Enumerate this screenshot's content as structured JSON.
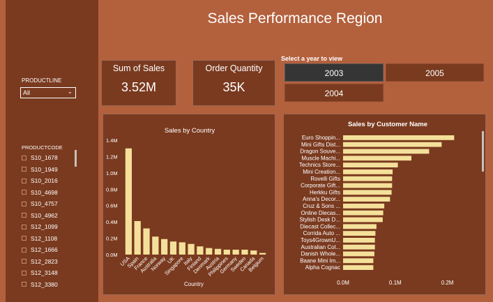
{
  "title": "Sales Performance Region",
  "filters": {
    "productline": {
      "label": "PRODUCTLINE",
      "value": "All"
    },
    "productcode": {
      "label": "PRODUCTCODE",
      "items": [
        "S10_1678",
        "S10_1949",
        "S10_2016",
        "S10_4698",
        "S10_4757",
        "S10_4962",
        "S12_1099",
        "S12_1108",
        "S12_1666",
        "S12_2823",
        "S12_3148",
        "S12_3380"
      ]
    }
  },
  "kpis": {
    "sales": {
      "label": "Sum of Sales",
      "value": "3.52M"
    },
    "quantity": {
      "label": "Order Quantity",
      "value": "35K"
    }
  },
  "year_selector": {
    "label": "Select a year to view",
    "years": [
      "2003",
      "2005",
      "2004"
    ],
    "selected": "2003"
  },
  "colors": {
    "background": "#b3603d",
    "panel": "#7a3a1f",
    "bar": "#f4e09a",
    "selected": "#353535"
  },
  "chart_data": [
    {
      "type": "bar",
      "title": "Sales by Country",
      "xlabel": "Country",
      "ylabel": "",
      "categories": [
        "USA",
        "Spain",
        "France",
        "Australia",
        "Norway",
        "UK",
        "Singapore",
        "Italy",
        "Finland",
        "Denmark",
        "Austria",
        "Philippines",
        "Germany",
        "Sweden",
        "Canada",
        "Belgium"
      ],
      "values": [
        1.3,
        0.41,
        0.32,
        0.22,
        0.19,
        0.16,
        0.15,
        0.13,
        0.1,
        0.08,
        0.07,
        0.06,
        0.06,
        0.06,
        0.05,
        0.02
      ],
      "ylim": [
        0,
        1.4
      ],
      "yticks": [
        "0.0M",
        "0.2M",
        "0.4M",
        "0.6M",
        "0.8M",
        "1.0M",
        "1.2M",
        "1.4M"
      ]
    },
    {
      "type": "bar",
      "orientation": "horizontal",
      "title": "Sales by Customer Name",
      "categories": [
        "Euro Shoppin...",
        "Mini Gifts Dist...",
        "Dragon Souve...",
        "Muscle Machi...",
        "Technics Store...",
        "Mini Creation...",
        "Rovelli Gifts",
        "Corporate Gift...",
        "Herkku Gifts",
        "Anna's Decor...",
        "Cruz & Sons ...",
        "Online Diecas...",
        "Stylish Desk D...",
        "Diecast Collec...",
        "Corrida Auto ...",
        "Toys4GrownU...",
        "Australian Col...",
        "Danish Whole...",
        "Baane Mini Im...",
        "Alpha Cognac"
      ],
      "values": [
        0.213,
        0.189,
        0.165,
        0.131,
        0.105,
        0.095,
        0.094,
        0.094,
        0.093,
        0.09,
        0.079,
        0.077,
        0.076,
        0.064,
        0.062,
        0.061,
        0.061,
        0.06,
        0.058,
        0.058
      ],
      "xlim": [
        0,
        0.25
      ],
      "xticks": [
        "0.0M",
        "0.1M",
        "0.2M"
      ]
    }
  ]
}
